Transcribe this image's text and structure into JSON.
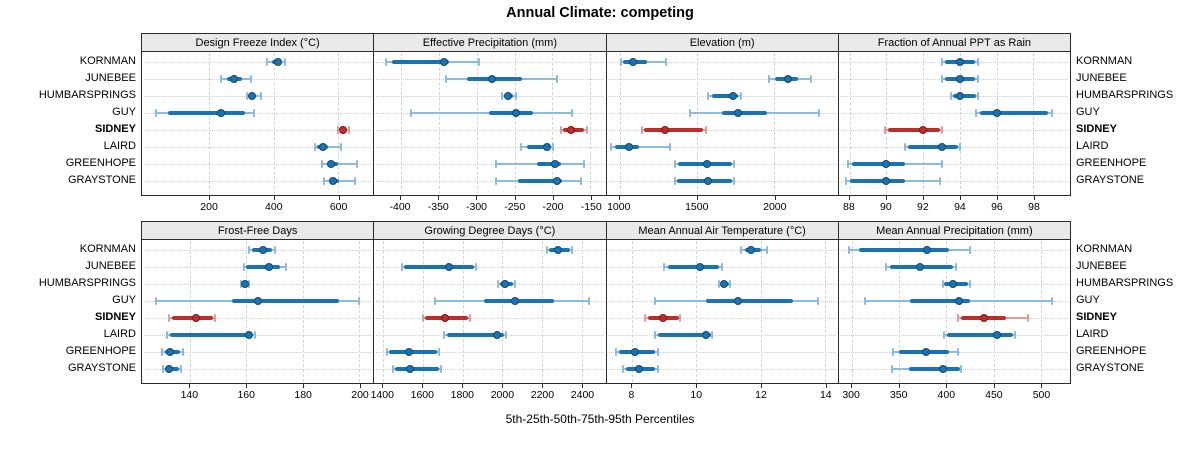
{
  "title": "Annual Climate: competing",
  "xlabel": "5th-25th-50th-75th-95th Percentiles",
  "sites": [
    "KORNMAN",
    "JUNEBEE",
    "HUMBARSPRINGS",
    "GUY",
    "SIDNEY",
    "LAIRD",
    "GREENHOPE",
    "GRAYSTONE"
  ],
  "highlight_site": "SIDNEY",
  "colors": {
    "series": "#1b72b0",
    "series_light": "#8cbbdd",
    "highlight": "#be2c2c",
    "highlight_light": "#e09c9c",
    "strip_bg": "#e9e9e9",
    "grid": "#d4d4d4",
    "border": "#2b2b2b"
  },
  "chart_data": {
    "type": "dotplot",
    "note": "trellis of percentile whisker plots; values are [p5,p25,p50,p75,p95] per site",
    "percentiles": [
      5,
      25,
      50,
      75,
      95
    ],
    "legend_position": "none",
    "grid": "dashed-vertical-dotted-horizontal",
    "panels": [
      {
        "key": "design-freeze-index",
        "title": "Design Freeze Index (°C)",
        "xlim": [
          -10,
          710
        ],
        "ticks": [
          200,
          400,
          600
        ],
        "values": {
          "KORNMAN": [
            380,
            395,
            412,
            422,
            435
          ],
          "JUNEBEE": [
            235,
            255,
            277,
            300,
            330
          ],
          "HUMBARSPRINGS": [
            318,
            328,
            333,
            345,
            362
          ],
          "GUY": [
            35,
            70,
            237,
            310,
            340
          ],
          "SIDNEY": [
            600,
            608,
            616,
            626,
            636
          ],
          "LAIRD": [
            528,
            535,
            555,
            568,
            610
          ],
          "GREENHOPE": [
            550,
            565,
            580,
            600,
            660
          ],
          "GRAYSTONE": [
            556,
            574,
            585,
            602,
            652
          ]
        }
      },
      {
        "key": "effective-precipitation",
        "title": "Effective Precipitation (mm)",
        "xlim": [
          -435,
          -130
        ],
        "ticks": [
          -400,
          -350,
          -300,
          -250,
          -200,
          -150
        ],
        "values": {
          "KORNMAN": [
            -420,
            -412,
            -343,
            -336,
            -297
          ],
          "JUNEBEE": [
            -340,
            -313,
            -280,
            -240,
            -194
          ],
          "HUMBARSPRINGS": [
            -267,
            -262,
            -258,
            -252,
            -248
          ],
          "GUY": [
            -386,
            -283,
            -248,
            -226,
            -174
          ],
          "SIDNEY": [
            -189,
            -186,
            -176,
            -158,
            -154
          ],
          "LAIRD": [
            -241,
            -233,
            -207,
            -202,
            -199
          ],
          "GREENHOPE": [
            -274,
            -221,
            -197,
            -189,
            -158
          ],
          "GRAYSTONE": [
            -274,
            -246,
            -194,
            -187,
            -162
          ]
        }
      },
      {
        "key": "elevation",
        "title": "Elevation (m)",
        "xlim": [
          915,
          2410
        ],
        "ticks": [
          1000,
          1500,
          2000
        ],
        "values": {
          "KORNMAN": [
            1010,
            1022,
            1085,
            1180,
            1300
          ],
          "JUNEBEE": [
            1965,
            2005,
            2090,
            2150,
            2235
          ],
          "HUMBARSPRINGS": [
            1570,
            1596,
            1730,
            1766,
            1786
          ],
          "GUY": [
            1455,
            1660,
            1765,
            1950,
            2290
          ],
          "SIDNEY": [
            1145,
            1160,
            1295,
            1540,
            1556
          ],
          "LAIRD": [
            945,
            968,
            1060,
            1128,
            1325
          ],
          "GREENHOPE": [
            1358,
            1375,
            1562,
            1727,
            1741
          ],
          "GRAYSTONE": [
            1355,
            1372,
            1573,
            1725,
            1740
          ]
        }
      },
      {
        "key": "fraction-annual-ppt-rain",
        "title": "Fraction of Annual PPT as Rain",
        "xlim": [
          87.4,
          100
        ],
        "ticks": [
          88,
          90,
          92,
          94,
          96,
          98
        ],
        "values": {
          "KORNMAN": [
            93.0,
            93.2,
            94.0,
            94.8,
            95.0
          ],
          "JUNEBEE": [
            93.0,
            93.2,
            94.0,
            94.8,
            95.0
          ],
          "HUMBARSPRINGS": [
            93.5,
            93.6,
            94.0,
            94.9,
            95.0
          ],
          "GUY": [
            94.9,
            95.1,
            96.0,
            98.8,
            99.0
          ],
          "SIDNEY": [
            89.9,
            90.1,
            92.0,
            92.9,
            93.0
          ],
          "LAIRD": [
            91.0,
            91.2,
            93.0,
            93.9,
            94.0
          ],
          "GREENHOPE": [
            87.9,
            88.1,
            90.0,
            91.0,
            93.0
          ],
          "GRAYSTONE": [
            87.8,
            88.0,
            90.0,
            91.0,
            92.9
          ]
        }
      },
      {
        "key": "frost-free-days",
        "title": "Frost-Free Days",
        "xlim": [
          123,
          205
        ],
        "ticks": [
          140,
          160,
          180,
          200
        ],
        "values": {
          "KORNMAN": [
            161,
            162,
            166,
            169,
            170
          ],
          "JUNEBEE": [
            159,
            160,
            168,
            172,
            174
          ],
          "HUMBARSPRINGS": [
            158,
            158.5,
            159.5,
            160.5,
            161
          ],
          "GUY": [
            128,
            155,
            164,
            193,
            200
          ],
          "SIDNEY": [
            132.5,
            133.5,
            142,
            148,
            149
          ],
          "LAIRD": [
            132,
            133,
            161,
            162,
            163
          ],
          "GREENHOPE": [
            130,
            131,
            133,
            136.5,
            137.5
          ],
          "GRAYSTONE": [
            130.5,
            131.5,
            132.5,
            136,
            137
          ]
        }
      },
      {
        "key": "growing-degree-days",
        "title": "Growing Degree Days (°C)",
        "xlim": [
          1355,
          2520
        ],
        "ticks": [
          1400,
          1600,
          1800,
          2000,
          2200,
          2400
        ],
        "values": {
          "KORNMAN": [
            2225,
            2235,
            2280,
            2340,
            2350
          ],
          "JUNEBEE": [
            1495,
            1505,
            1730,
            1860,
            1870
          ],
          "HUMBARSPRINGS": [
            1980,
            1988,
            2012,
            2055,
            2062
          ],
          "GUY": [
            1660,
            1910,
            2065,
            2260,
            2435
          ],
          "SIDNEY": [
            1600,
            1610,
            1712,
            1828,
            1838
          ],
          "LAIRD": [
            1708,
            1720,
            1973,
            2010,
            2018
          ],
          "GREENHOPE": [
            1420,
            1430,
            1528,
            1670,
            1680
          ],
          "GRAYSTONE": [
            1450,
            1460,
            1537,
            1680,
            1690
          ]
        }
      },
      {
        "key": "mean-annual-air-temperature",
        "title": "Mean Annual Air Temperature (°C)",
        "xlim": [
          7.2,
          14.4
        ],
        "ticks": [
          8,
          10,
          12,
          14
        ],
        "values": {
          "KORNMAN": [
            11.4,
            11.5,
            11.7,
            12.0,
            12.2
          ],
          "JUNEBEE": [
            9.0,
            9.1,
            10.1,
            10.7,
            10.8
          ],
          "HUMBARSPRINGS": [
            10.7,
            10.75,
            10.85,
            11.0,
            11.05
          ],
          "GUY": [
            8.7,
            10.3,
            11.3,
            13.0,
            13.8
          ],
          "SIDNEY": [
            8.4,
            8.5,
            8.95,
            9.45,
            9.5
          ],
          "LAIRD": [
            8.7,
            8.8,
            10.3,
            10.45,
            10.5
          ],
          "GREENHOPE": [
            7.5,
            7.6,
            8.1,
            8.7,
            8.8
          ],
          "GRAYSTONE": [
            7.7,
            7.8,
            8.2,
            8.7,
            8.8
          ]
        }
      },
      {
        "key": "mean-annual-precipitation",
        "title": "Mean Annual Precipitation (mm)",
        "xlim": [
          286,
          531
        ],
        "ticks": [
          300,
          350,
          400,
          450,
          500
        ],
        "values": {
          "KORNMAN": [
            297,
            307,
            380,
            403,
            425
          ],
          "JUNEBEE": [
            336,
            340,
            372,
            407,
            410
          ],
          "HUMBARSPRINGS": [
            396,
            398,
            407,
            423,
            425
          ],
          "GUY": [
            314,
            362,
            413,
            425,
            512
          ],
          "SIDNEY": [
            412,
            415,
            440,
            463,
            487
          ],
          "LAIRD": [
            398,
            401,
            454,
            471,
            473
          ],
          "GREENHOPE": [
            344,
            350,
            378,
            403,
            412
          ],
          "GRAYSTONE": [
            342,
            360,
            396,
            414,
            416
          ]
        }
      }
    ]
  }
}
